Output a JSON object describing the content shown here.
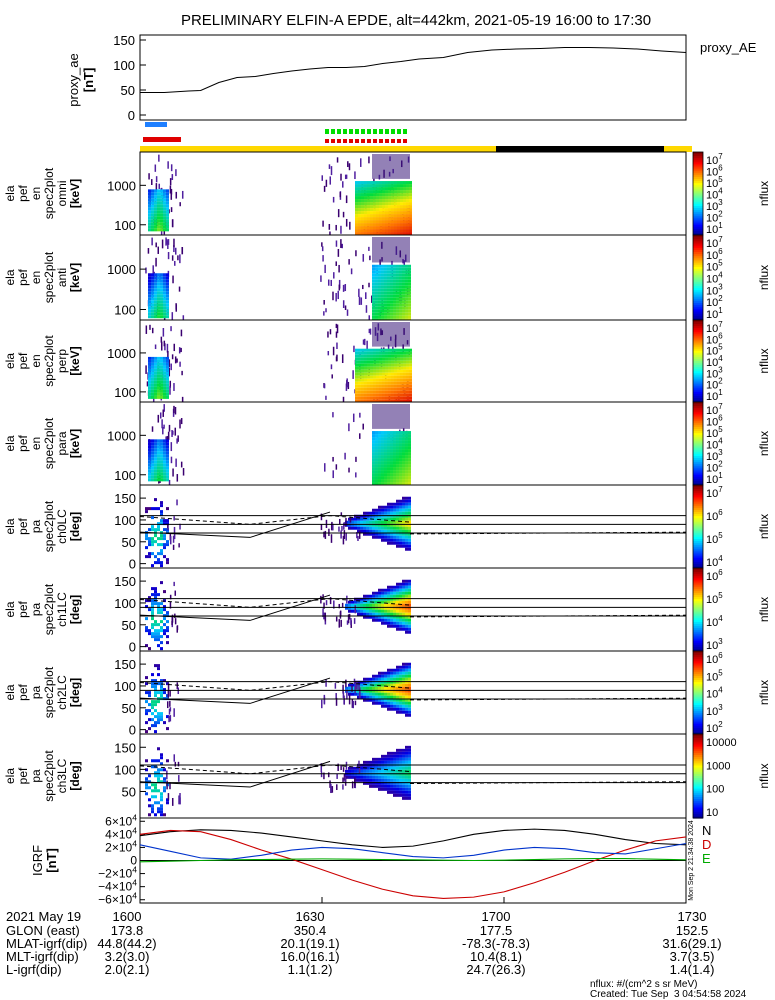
{
  "title": "PRELIMINARY ELFIN-A EPDE, alt=442km, 2021-05-19 16:00 to 17:30",
  "ae_panel": {
    "ylabel": [
      "proxy_ae",
      "[nT]"
    ],
    "yticks": [
      "150",
      "100",
      "50",
      "0"
    ],
    "legend": "proxy_AE",
    "chart_data": {
      "type": "line",
      "x_minutes": [
        0,
        4,
        8,
        10,
        13,
        16,
        19,
        22,
        25,
        28,
        31,
        34,
        37,
        40,
        43,
        46,
        50,
        54,
        58,
        62,
        66,
        70,
        74,
        78,
        82,
        86,
        90
      ],
      "values": [
        45,
        45,
        48,
        49,
        65,
        75,
        77,
        83,
        88,
        92,
        95,
        95,
        97,
        103,
        107,
        112,
        115,
        125,
        130,
        132,
        133,
        135,
        135,
        134,
        132,
        128,
        125
      ],
      "ylim": [
        -10,
        160
      ]
    }
  },
  "energy_panels": [
    {
      "label": [
        "ela",
        "pef",
        "en",
        "spec2plot",
        "omni",
        "[keV]"
      ],
      "yticks": [
        "1000",
        "100"
      ]
    },
    {
      "label": [
        "ela",
        "pef",
        "en",
        "spec2plot",
        "anti",
        "[keV]"
      ],
      "yticks": [
        "1000",
        "100"
      ]
    },
    {
      "label": [
        "ela",
        "pef",
        "en",
        "spec2plot",
        "perp",
        "[keV]"
      ],
      "yticks": [
        "1000",
        "100"
      ]
    },
    {
      "label": [
        "ela",
        "pef",
        "en",
        "spec2plot",
        "para",
        "[keV]"
      ],
      "yticks": [
        "1000",
        "100"
      ]
    }
  ],
  "pitch_panels": [
    {
      "label": [
        "ela",
        "pef",
        "pa",
        "spec2plot",
        "ch0LC",
        "[deg]"
      ],
      "yticks": [
        "150",
        "100",
        "50",
        "0"
      ]
    },
    {
      "label": [
        "ela",
        "pef",
        "pa",
        "spec2plot",
        "ch1LC",
        "[deg]"
      ],
      "yticks": [
        "150",
        "100",
        "50",
        "0"
      ]
    },
    {
      "label": [
        "ela",
        "pef",
        "pa",
        "spec2plot",
        "ch2LC",
        "[deg]"
      ],
      "yticks": [
        "150",
        "100",
        "50",
        "0"
      ]
    },
    {
      "label": [
        "ela",
        "pef",
        "pa",
        "spec2plot",
        "ch3LC",
        "[deg]"
      ],
      "yticks": [
        "150",
        "100",
        "50"
      ]
    }
  ],
  "colorbars": [
    {
      "ticks": [
        "10^7",
        "10^6",
        "10^5",
        "10^4",
        "10^3",
        "10^2",
        "10^1"
      ],
      "label": "nflux"
    },
    {
      "ticks": [
        "10^7",
        "10^6",
        "10^5",
        "10^4",
        "10^3",
        "10^2",
        "10^1"
      ],
      "label": "nflux"
    },
    {
      "ticks": [
        "10^7",
        "10^6",
        "10^5",
        "10^4",
        "10^3",
        "10^2",
        "10^1"
      ],
      "label": "nflux"
    },
    {
      "ticks": [
        "10^7",
        "10^6",
        "10^5",
        "10^4",
        "10^3",
        "10^2",
        "10^1"
      ],
      "label": "nflux"
    },
    {
      "ticks": [
        "10^7",
        "10^6",
        "10^5",
        "10^4"
      ],
      "label": "nflux"
    },
    {
      "ticks": [
        "10^6",
        "10^5",
        "10^4",
        "10^3"
      ],
      "label": "nflux"
    },
    {
      "ticks": [
        "10^6",
        "10^5",
        "10^4",
        "10^3",
        "10^2"
      ],
      "label": "nflux"
    },
    {
      "ticks": [
        "10000",
        "1000",
        "100",
        "10"
      ],
      "label": "nflux"
    }
  ],
  "igrf_panel": {
    "ylabel": [
      "IGRF",
      "[nT]"
    ],
    "yticks": [
      "6×10^4",
      "4×10^4",
      "2×10^4",
      "0",
      "−2×10^4",
      "−4×10^4",
      "−6×10^4"
    ],
    "legend": [
      "N",
      "D",
      "E"
    ],
    "legend_colors": [
      "#000000",
      "#cc0000",
      "#00aa00"
    ],
    "stamp": "Mon Sep 2 21:34:38 2024",
    "chart_data": {
      "type": "line",
      "x_minutes": [
        0,
        5,
        10,
        15,
        20,
        25,
        30,
        35,
        40,
        45,
        50,
        55,
        60,
        65,
        70,
        75,
        80,
        85,
        90
      ],
      "series": [
        {
          "color": "#000000",
          "values": [
            38000,
            44000,
            47000,
            46000,
            42000,
            36000,
            30000,
            24000,
            20000,
            22000,
            30000,
            40000,
            46000,
            48000,
            46000,
            40000,
            32000,
            26000,
            24000
          ]
        },
        {
          "color": "#cc0000",
          "values": [
            40000,
            46000,
            44000,
            32000,
            16000,
            2000,
            -14000,
            -30000,
            -44000,
            -54000,
            -58000,
            -56000,
            -48000,
            -34000,
            -18000,
            0,
            16000,
            30000,
            36000
          ]
        },
        {
          "color": "#0033cc",
          "values": [
            24000,
            14000,
            4000,
            2000,
            8000,
            16000,
            20000,
            18000,
            12000,
            6000,
            4000,
            8000,
            16000,
            20000,
            18000,
            12000,
            10000,
            18000,
            26000
          ]
        },
        {
          "color": "#00aa00",
          "values": [
            -2000,
            -1000,
            0,
            1000,
            1500,
            2000,
            2500,
            2000,
            1500,
            1000,
            500,
            0,
            500,
            1500,
            2500,
            3000,
            3000,
            2000,
            1000
          ]
        }
      ],
      "ylim": [
        -65000,
        65000
      ]
    }
  },
  "x_axis": {
    "ticks": [
      "1600",
      "1630",
      "1700",
      "1730"
    ],
    "tick_minutes": [
      0,
      30,
      60,
      90
    ],
    "date": "2021 May 19"
  },
  "footer_rows": [
    {
      "label": "GLON (east)",
      "values": [
        "173.8",
        "350.4",
        "177.5",
        "152.5"
      ]
    },
    {
      "label": "MLAT-igrf(dip)",
      "values": [
        "44.8(44.2)",
        "20.1(19.1)",
        "-78.3(-78.3)",
        "31.6(29.1)"
      ]
    },
    {
      "label": "MLT-igrf(dip)",
      "values": [
        "3.2(3.0)",
        "16.0(16.1)",
        "10.4(8.1)",
        "3.7(3.5)"
      ]
    },
    {
      "label": "L-igrf(dip)",
      "values": [
        "2.0(2.1)",
        "1.1(1.2)",
        "24.7(26.3)",
        "1.4(1.4)"
      ]
    }
  ],
  "credit": [
    "nflux: #/(cm^2 s sr MeV)",
    "Created: Tue Sep  3 04:54:58 2024"
  ],
  "colors": {
    "bar_yellow": "#ffd800",
    "bar_black": "#000000",
    "blue_marker": "#1e7fff",
    "red_marker": "#e00000",
    "green_marker": "#00dd00"
  }
}
